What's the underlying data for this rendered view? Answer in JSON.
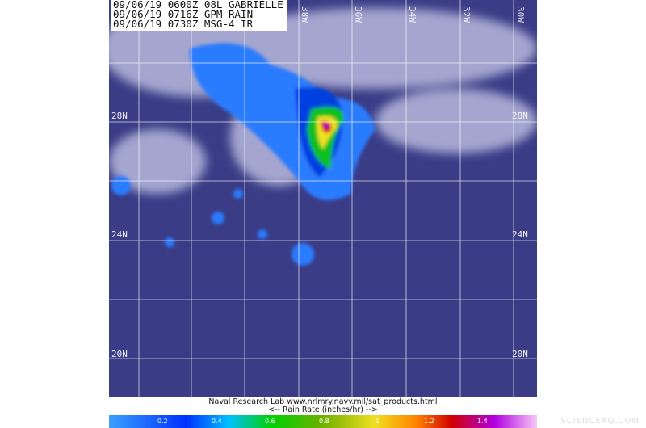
{
  "header": {
    "lines": [
      "09/06/19 0600Z 08L GABRIELLE",
      "09/06/19 0716Z GPM RAIN",
      "09/06/19 0730Z MSG-4 IR"
    ]
  },
  "longitudes": [
    "38W",
    "36W",
    "34W",
    "32W",
    "30W"
  ],
  "latitudes": [
    "28N",
    "24N",
    "20N"
  ],
  "credit": {
    "line1": "Naval Research Lab  www.nrlmry.navy.mil/sat_products.html",
    "line2": "<--   Rain Rate (inches/hr)   -->"
  },
  "colorbar": {
    "ticks": [
      "0.2",
      "0.4",
      "0.6",
      "0.8",
      "1",
      "1.2",
      "1.4"
    ]
  },
  "watermark": "SCIENCEAQ.COM",
  "colors": {
    "ocean": "#3a3c86",
    "cloud": "#c8cae8",
    "light_rain": "#2a7cff",
    "heavy_rain": "#d01010"
  }
}
